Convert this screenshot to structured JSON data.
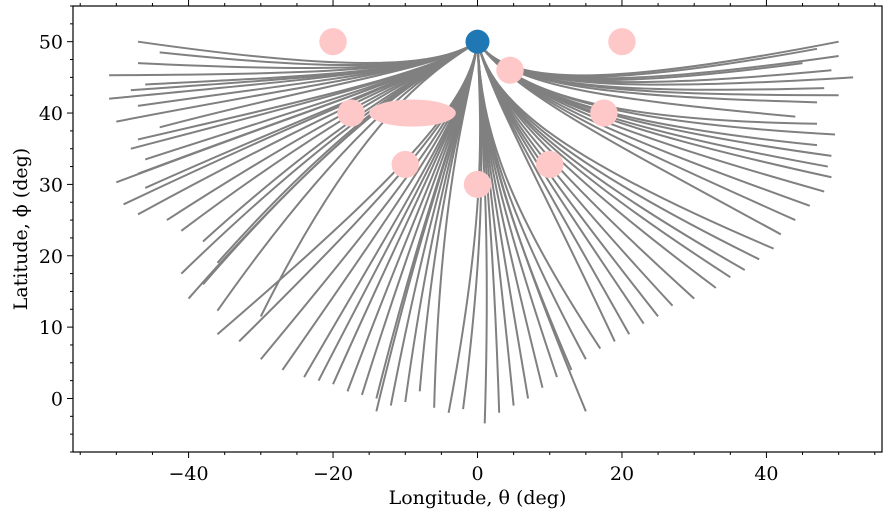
{
  "chart_data": {
    "type": "line",
    "xlabel": "Longitude, θ (deg)",
    "ylabel": "Latitude, ϕ (deg)",
    "xlim": [
      -56,
      56
    ],
    "ylim": [
      -7.5,
      55
    ],
    "xticks": [
      {
        "value": -40,
        "label": "−40"
      },
      {
        "value": -20,
        "label": "−20"
      },
      {
        "value": 0,
        "label": "0"
      },
      {
        "value": 20,
        "label": "20"
      },
      {
        "value": 40,
        "label": "40"
      }
    ],
    "yticks": [
      {
        "value": 0,
        "label": "0"
      },
      {
        "value": 10,
        "label": "10"
      },
      {
        "value": 20,
        "label": "20"
      },
      {
        "value": 30,
        "label": "30"
      },
      {
        "value": 40,
        "label": "40"
      },
      {
        "value": 50,
        "label": "50"
      }
    ],
    "colors": {
      "paths": "#808080",
      "obstacles": "#ffc8c8",
      "start": "#1f77b4"
    },
    "start_point": {
      "x": 0,
      "y": 50
    },
    "obstacles": [
      {
        "x": -20,
        "y": 50,
        "rx": 1.9,
        "ry": 1.9
      },
      {
        "x": 20,
        "y": 50,
        "rx": 1.9,
        "ry": 1.9
      },
      {
        "x": 4.5,
        "y": 46,
        "rx": 1.9,
        "ry": 1.9
      },
      {
        "x": -17.5,
        "y": 40,
        "rx": 1.9,
        "ry": 1.9
      },
      {
        "x": -9,
        "y": 40,
        "rx": 6,
        "ry": 1.9
      },
      {
        "x": 17.5,
        "y": 40,
        "rx": 1.9,
        "ry": 1.9
      },
      {
        "x": -10,
        "y": 32.8,
        "rx": 1.9,
        "ry": 1.9
      },
      {
        "x": 0,
        "y": 30,
        "rx": 1.9,
        "ry": 1.9
      },
      {
        "x": 10,
        "y": 32.8,
        "rx": 1.9,
        "ry": 1.9
      }
    ],
    "path_groups": [
      {
        "name": "upper-left",
        "control": [
          [
            0,
            50
          ],
          [
            -6,
            46
          ],
          [
            -16,
            45.5
          ]
        ],
        "ends": [
          [
            -47,
            50
          ],
          [
            -44,
            48.5
          ],
          [
            -47,
            47
          ],
          [
            -51,
            45.3
          ],
          [
            -46,
            44
          ],
          [
            -48,
            43.2
          ],
          [
            -51,
            42
          ],
          [
            -47,
            41
          ],
          [
            -50,
            38.8
          ],
          [
            -44,
            38
          ]
        ]
      },
      {
        "name": "left-mid",
        "control": [
          [
            0,
            50
          ],
          [
            -6,
            46
          ],
          [
            -14,
            44
          ]
        ],
        "ends": [
          [
            -47,
            36.3
          ],
          [
            -48,
            35
          ],
          [
            -46,
            33.5
          ],
          [
            -47,
            31.5
          ],
          [
            -50,
            30.3
          ],
          [
            -46,
            29.5
          ],
          [
            -49,
            27.2
          ],
          [
            -47,
            25.8
          ],
          [
            -43,
            25
          ],
          [
            -41,
            23.5
          ],
          [
            -38,
            22
          ],
          [
            -36,
            19
          ],
          [
            -41,
            17.5
          ],
          [
            -38,
            16
          ],
          [
            -40,
            14
          ],
          [
            -36,
            12.3
          ],
          [
            -30,
            11.5
          ]
        ]
      },
      {
        "name": "lower-left",
        "control": [
          [
            0,
            50
          ],
          [
            -1,
            42
          ],
          [
            -5,
            36
          ]
        ],
        "ends": [
          [
            -36,
            9
          ],
          [
            -33,
            8
          ],
          [
            -30,
            5.5
          ],
          [
            -27,
            4
          ],
          [
            -24,
            3
          ],
          [
            -22,
            2.5
          ],
          [
            -20,
            2
          ],
          [
            -18,
            1
          ],
          [
            -16,
            0.5
          ],
          [
            -14,
            0
          ],
          [
            -12,
            -1
          ],
          [
            -10,
            -0.5
          ],
          [
            -8,
            1
          ],
          [
            -14,
            -1.8
          ],
          [
            -6,
            -1.3
          ]
        ]
      },
      {
        "name": "center-down",
        "control": [
          [
            0,
            50
          ],
          [
            0.5,
            38
          ],
          [
            2,
            30
          ]
        ],
        "ends": [
          [
            -4,
            -2
          ],
          [
            -2,
            -1.5
          ],
          [
            1,
            -3.5
          ],
          [
            3,
            -2
          ],
          [
            5,
            -1
          ],
          [
            7,
            0
          ],
          [
            9,
            1.5
          ],
          [
            11,
            3
          ],
          [
            13,
            4
          ],
          [
            15,
            5.5
          ],
          [
            15,
            -1.8
          ],
          [
            17,
            7
          ]
        ]
      },
      {
        "name": "lower-right",
        "control": [
          [
            0,
            50
          ],
          [
            2,
            42
          ],
          [
            6,
            36
          ]
        ],
        "ends": [
          [
            19,
            8
          ],
          [
            21,
            9
          ],
          [
            23,
            10.5
          ],
          [
            25,
            11.5
          ],
          [
            27,
            13
          ],
          [
            30,
            14
          ],
          [
            33,
            15.5
          ],
          [
            35,
            17
          ],
          [
            37,
            18
          ],
          [
            39,
            19.5
          ],
          [
            41,
            21
          ]
        ]
      },
      {
        "name": "right-mid",
        "control": [
          [
            0,
            50
          ],
          [
            5,
            43
          ],
          [
            13,
            39
          ]
        ],
        "ends": [
          [
            42,
            23
          ],
          [
            44,
            25
          ],
          [
            46,
            27
          ],
          [
            48,
            29
          ],
          [
            49,
            31
          ],
          [
            48.5,
            32.5
          ],
          [
            49,
            34
          ],
          [
            47,
            35.5
          ],
          [
            49.5,
            37
          ],
          [
            47,
            38.5
          ]
        ]
      },
      {
        "name": "upper-right",
        "control": [
          [
            0,
            50
          ],
          [
            4,
            44
          ],
          [
            12,
            42.5
          ]
        ],
        "ends": [
          [
            44,
            39.5
          ],
          [
            47,
            41.5
          ],
          [
            50,
            42.5
          ],
          [
            48,
            43.5
          ],
          [
            52,
            45
          ],
          [
            49,
            46
          ],
          [
            45,
            47
          ],
          [
            50,
            48
          ],
          [
            47,
            49
          ],
          [
            50,
            50
          ]
        ]
      }
    ]
  }
}
